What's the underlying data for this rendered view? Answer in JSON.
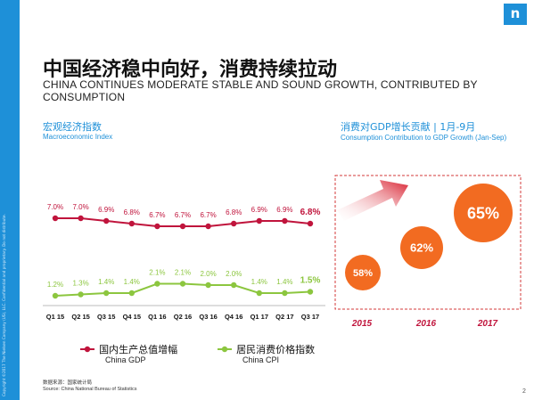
{
  "brand": {
    "logo_text": "n",
    "color": "#1e90d8",
    "sidebar_text": "Copyright ©2017 The Nielsen Company (US), LLC. Confidential and proprietary. Do not distribute."
  },
  "title_cn": "中国经济稳中向好，消费持续拉动",
  "title_en": "CHINA CONTINUES  MODERATE STABLE AND SOUND GROWTH, CONTRIBUTED BY CONSUMPTION",
  "left_caption": {
    "cn": "宏观经济指数",
    "en": "Macroeconomic Index"
  },
  "right_caption": {
    "cn": "消费对GDP增长贡献 | 1月-9月",
    "en": "Consumption Contribution to GDP Growth (Jan-Sep)"
  },
  "footer": {
    "cn": "数据来源：国家统计局",
    "en": "Source: China National Bureau of Statistics"
  },
  "page_number": "2",
  "chart_data": [
    {
      "type": "line",
      "categories": [
        "Q1 15",
        "Q2 15",
        "Q3 15",
        "Q4 15",
        "Q1 16",
        "Q2 16",
        "Q3 16",
        "Q4 16",
        "Q1 17",
        "Q2 17",
        "Q3 17"
      ],
      "series": [
        {
          "name_cn": "国内生产总值增幅",
          "name": "China GDP",
          "values": [
            7.0,
            7.0,
            6.9,
            6.8,
            6.7,
            6.7,
            6.7,
            6.8,
            6.9,
            6.9,
            6.8
          ],
          "labels": [
            "7.0%",
            "7.0%",
            "6.9%",
            "6.8%",
            "6.7%",
            "6.7%",
            "6.7%",
            "6.8%",
            "6.9%",
            "6.9%",
            "6.8%"
          ],
          "color": "#c0143c"
        },
        {
          "name_cn": "居民消费价格指数",
          "name": "China CPI",
          "values": [
            1.2,
            1.3,
            1.4,
            1.4,
            2.1,
            2.1,
            2.0,
            2.0,
            1.4,
            1.4,
            1.5
          ],
          "labels": [
            "1.2%",
            "1.3%",
            "1.4%",
            "1.4%",
            "2.1%",
            "2.1%",
            "2.0%",
            "2.0%",
            "1.4%",
            "1.4%",
            "1.5%"
          ],
          "color": "#8cc63f"
        }
      ]
    },
    {
      "type": "bubble",
      "categories": [
        "2015",
        "2016",
        "2017"
      ],
      "values": [
        58,
        62,
        65
      ],
      "labels": [
        "58%",
        "62%",
        "65%"
      ],
      "color": "#f26b21"
    }
  ]
}
